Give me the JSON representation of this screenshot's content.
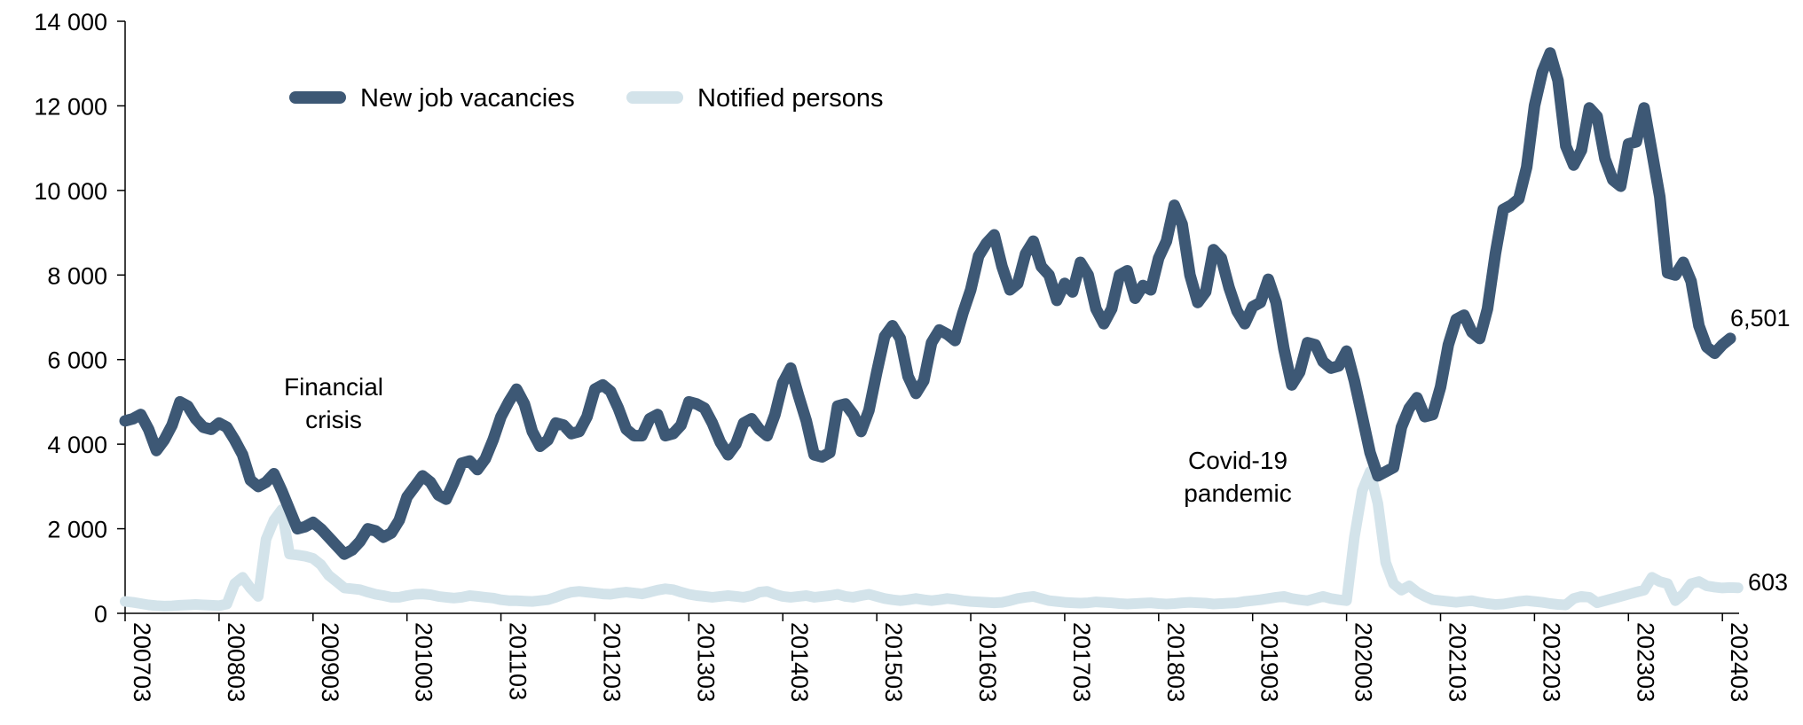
{
  "chart_data": {
    "type": "line",
    "title": "",
    "xlabel": "",
    "ylabel": "",
    "ylim": [
      0,
      14000
    ],
    "yticks": [
      0,
      2000,
      4000,
      6000,
      8000,
      10000,
      12000,
      14000
    ],
    "ytick_labels": [
      "0",
      "2 000",
      "4 000",
      "6 000",
      "8 000",
      "10 000",
      "12 000",
      "14 000"
    ],
    "xtick_labels": [
      "200703",
      "200803",
      "200903",
      "201003",
      "201103",
      "201203",
      "201303",
      "201403",
      "201503",
      "201603",
      "201703",
      "201803",
      "201903",
      "202003",
      "202103",
      "202203",
      "202303",
      "202403"
    ],
    "x_start": "2007-03",
    "x_end": "2024-03",
    "grid": false,
    "legend_position": "top-left",
    "series": [
      {
        "name": "New job vacancies",
        "color": "#3d5875",
        "values": [
          4550,
          4600,
          4700,
          4350,
          3850,
          4100,
          4450,
          5000,
          4900,
          4600,
          4400,
          4350,
          4500,
          4400,
          4100,
          3750,
          3150,
          3000,
          3100,
          3300,
          2900,
          2450,
          2000,
          2050,
          2150,
          2000,
          1800,
          1600,
          1400,
          1500,
          1700,
          2000,
          1950,
          1800,
          1900,
          2200,
          2750,
          3000,
          3250,
          3100,
          2800,
          2700,
          3100,
          3550,
          3600,
          3400,
          3650,
          4100,
          4650,
          5000,
          5300,
          4950,
          4300,
          3950,
          4100,
          4500,
          4450,
          4250,
          4300,
          4650,
          5300,
          5400,
          5250,
          4850,
          4350,
          4200,
          4200,
          4600,
          4700,
          4200,
          4250,
          4450,
          5000,
          4950,
          4850,
          4500,
          4050,
          3750,
          4000,
          4500,
          4600,
          4350,
          4200,
          4700,
          5450,
          5800,
          5150,
          4550,
          3750,
          3700,
          3800,
          4900,
          4950,
          4700,
          4300,
          4800,
          5700,
          6550,
          6800,
          6500,
          5600,
          5200,
          5500,
          6400,
          6700,
          6600,
          6450,
          7100,
          7650,
          8450,
          8750,
          8950,
          8200,
          7650,
          7800,
          8500,
          8800,
          8200,
          8000,
          7400,
          7800,
          7600,
          8300,
          8000,
          7200,
          6850,
          7200,
          8000,
          8100,
          7450,
          7750,
          7650,
          8400,
          8800,
          9650,
          9200,
          8000,
          7350,
          7600,
          8600,
          8400,
          7700,
          7150,
          6850,
          7250,
          7350,
          7900,
          7350,
          6250,
          5400,
          5700,
          6400,
          6350,
          5950,
          5800,
          5850,
          6200,
          5500,
          4650,
          3800,
          3250,
          3350,
          3450,
          4400,
          4850,
          5100,
          4650,
          4700,
          5350,
          6350,
          6950,
          7050,
          6650,
          6500,
          7200,
          8500,
          9550,
          9650,
          9800,
          10550,
          12000,
          12800,
          13250,
          12600,
          11050,
          10600,
          10950,
          11950,
          11750,
          10750,
          10250,
          10100,
          11100,
          11150,
          11950,
          10900,
          9850,
          8050,
          8000,
          8300,
          7850,
          6800,
          6300,
          6150,
          6350,
          6501
        ]
      },
      {
        "name": "Notified persons",
        "color": "#d3e3ea",
        "values": [
          280,
          260,
          230,
          200,
          180,
          170,
          175,
          190,
          200,
          210,
          200,
          190,
          180,
          220,
          700,
          850,
          600,
          400,
          1750,
          2200,
          2450,
          1400,
          1380,
          1350,
          1300,
          1150,
          900,
          750,
          600,
          580,
          560,
          500,
          450,
          420,
          380,
          380,
          420,
          450,
          460,
          440,
          400,
          380,
          360,
          380,
          420,
          400,
          380,
          360,
          320,
          300,
          300,
          290,
          280,
          300,
          320,
          380,
          450,
          500,
          520,
          500,
          480,
          460,
          450,
          480,
          500,
          480,
          460,
          500,
          550,
          580,
          560,
          500,
          450,
          420,
          400,
          380,
          400,
          420,
          400,
          380,
          420,
          500,
          520,
          450,
          400,
          380,
          400,
          420,
          380,
          400,
          420,
          450,
          400,
          380,
          420,
          450,
          400,
          350,
          320,
          300,
          320,
          350,
          320,
          300,
          320,
          350,
          330,
          300,
          280,
          270,
          260,
          250,
          260,
          300,
          350,
          380,
          400,
          350,
          300,
          280,
          260,
          250,
          240,
          250,
          270,
          260,
          250,
          230,
          220,
          230,
          240,
          250,
          230,
          220,
          230,
          250,
          260,
          250,
          240,
          220,
          230,
          240,
          250,
          280,
          300,
          320,
          350,
          380,
          400,
          350,
          320,
          300,
          350,
          400,
          350,
          320,
          300,
          1800,
          2900,
          3350,
          2600,
          1200,
          700,
          550,
          650,
          500,
          400,
          320,
          300,
          280,
          260,
          280,
          300,
          260,
          230,
          210,
          220,
          250,
          280,
          300,
          280,
          260,
          230,
          210,
          200,
          350,
          400,
          380,
          250,
          300,
          350,
          400,
          450,
          500,
          550,
          850,
          750,
          700,
          300,
          450,
          700,
          750,
          650,
          620,
          600,
          610,
          603
        ]
      }
    ],
    "end_labels": [
      "6,501",
      "603"
    ],
    "annotations": [
      {
        "lines": [
          "Financial",
          "crisis"
        ],
        "at": "2009-02"
      },
      {
        "lines": [
          "Covid-19",
          "pandemic"
        ],
        "at": "2020-07"
      }
    ]
  }
}
